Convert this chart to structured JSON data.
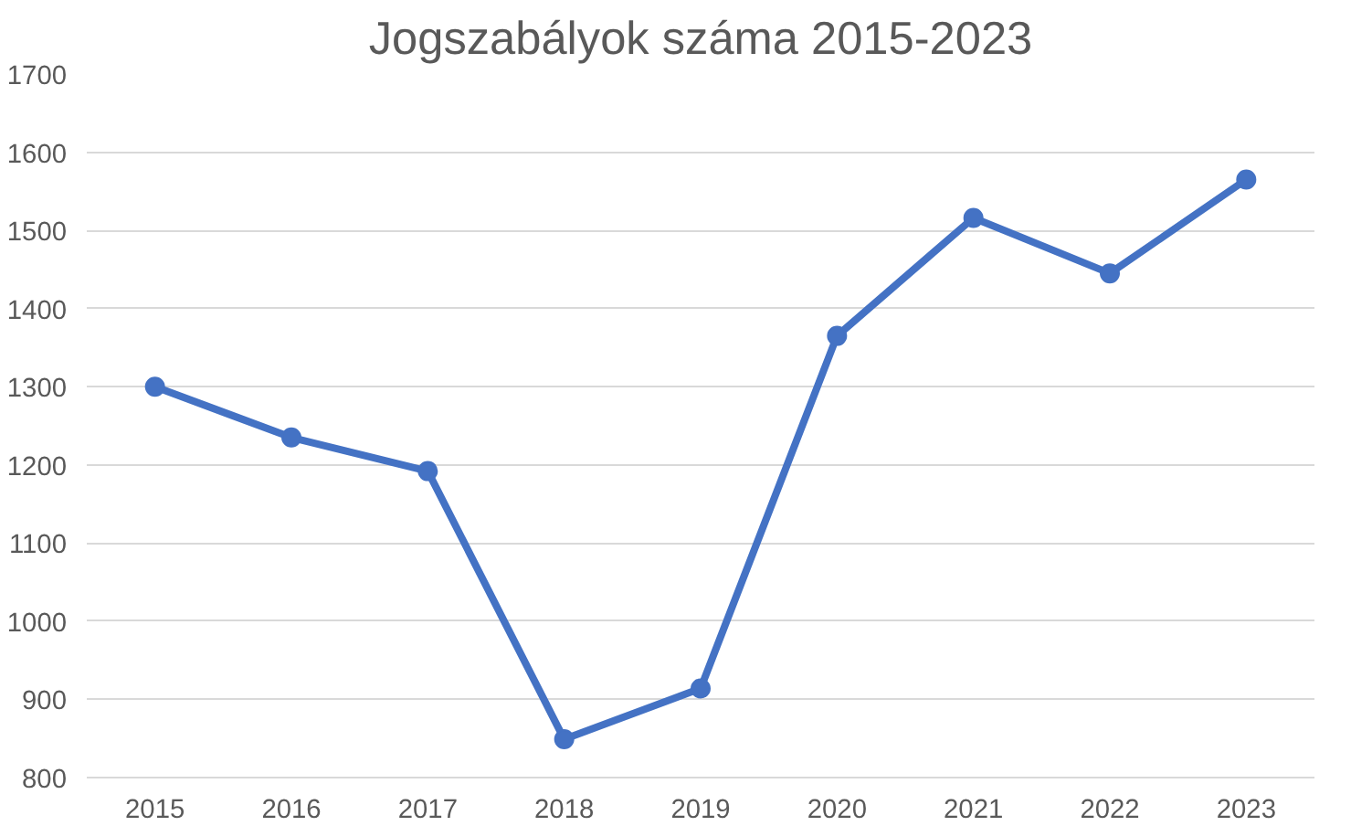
{
  "chart_data": {
    "type": "line",
    "title": "Jogszabályok száma 2015-2023",
    "categories": [
      "2015",
      "2016",
      "2017",
      "2018",
      "2019",
      "2020",
      "2021",
      "2022",
      "2023"
    ],
    "series": [
      {
        "color": "#4472c4",
        "values": [
          1300,
          1235,
          1192,
          849,
          914,
          1365,
          1516,
          1445,
          1565
        ]
      }
    ],
    "ylim": [
      800,
      1700
    ],
    "yticks": [
      800,
      900,
      1000,
      1100,
      1200,
      1300,
      1400,
      1500,
      1600,
      1700
    ],
    "grid": "y",
    "marker": "circle",
    "line_style": "solid"
  }
}
